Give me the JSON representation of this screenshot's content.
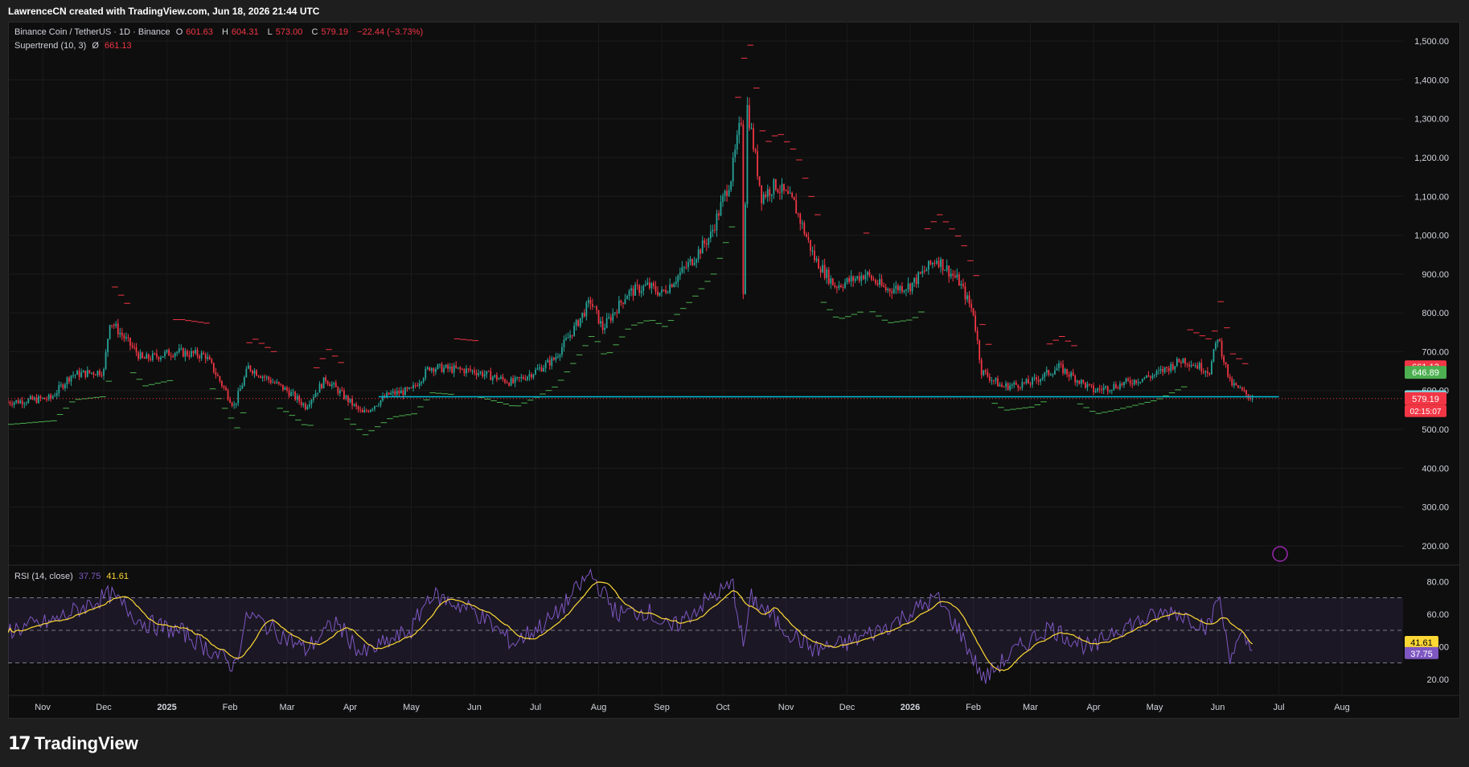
{
  "header": {
    "attribution": "LawrenceCN created with TradingView.com, Jun 18, 2026 21:44 UTC"
  },
  "legend": {
    "symbol": "Binance Coin / TetherUS · 1D · Binance",
    "open_label": "O",
    "open": "601.63",
    "high_label": "H",
    "high": "604.31",
    "low_label": "L",
    "low": "573.00",
    "close_label": "C",
    "close": "579.19",
    "change": "−22.44 (−3.73%)",
    "supertrend_label": "Supertrend (10, 3)",
    "supertrend_icon": "Ø",
    "supertrend_value": "661.13",
    "rsi_label": "RSI (14, close)",
    "rsi_value": "37.75",
    "rsi_ma_value": "41.61"
  },
  "footer": {
    "brand_mark": "17",
    "brand": "TradingView"
  },
  "colors": {
    "up": "#26a69a",
    "down": "#f23645",
    "st_up": "#4caf50",
    "st_down": "#f23645",
    "rsi": "#7e57c2",
    "rsi_ma": "#fdd835",
    "hline": "#00bcd4",
    "bg": "#0e0e0e"
  },
  "chart_data": [
    {
      "type": "candlestick",
      "title": "Binance Coin / TetherUS · 1D · Binance",
      "ylim": [
        150,
        1550
      ],
      "yticks": [
        200,
        300,
        400,
        500,
        600,
        700,
        800,
        900,
        1000,
        1100,
        1200,
        1300,
        1400,
        1500
      ],
      "ytick_labels": [
        "200.00",
        "300.00",
        "400.00",
        "500.00",
        "600.00",
        "700.00",
        "800.00",
        "900.00",
        "1,000.00",
        "1,100.00",
        "1,200.00",
        "1,300.00",
        "1,400.00",
        "1,500.00"
      ],
      "x_labels": [
        "Nov",
        "Dec",
        "2025",
        "Feb",
        "Mar",
        "Apr",
        "May",
        "Jun",
        "Jul",
        "Aug",
        "Sep",
        "Oct",
        "Nov",
        "Dec",
        "2026",
        "Feb",
        "Mar",
        "Apr",
        "May",
        "Jun",
        "Jul",
        "Aug"
      ],
      "x_start": "2024-10-15",
      "x_end": "2026-08-31",
      "price_path": [
        [
          "2024-10-15",
          570
        ],
        [
          "2024-11-05",
          580
        ],
        [
          "2024-11-15",
          640
        ],
        [
          "2024-12-01",
          650
        ],
        [
          "2024-12-04",
          780
        ],
        [
          "2024-12-20",
          680
        ],
        [
          "2025-01-05",
          700
        ],
        [
          "2025-01-20",
          690
        ],
        [
          "2025-02-03",
          560
        ],
        [
          "2025-02-10",
          660
        ],
        [
          "2025-03-01",
          600
        ],
        [
          "2025-03-10",
          560
        ],
        [
          "2025-03-20",
          630
        ],
        [
          "2025-04-07",
          540
        ],
        [
          "2025-04-20",
          590
        ],
        [
          "2025-05-01",
          600
        ],
        [
          "2025-05-10",
          660
        ],
        [
          "2025-06-01",
          650
        ],
        [
          "2025-06-20",
          620
        ],
        [
          "2025-07-01",
          650
        ],
        [
          "2025-07-10",
          680
        ],
        [
          "2025-07-20",
          760
        ],
        [
          "2025-07-28",
          830
        ],
        [
          "2025-08-03",
          760
        ],
        [
          "2025-08-15",
          850
        ],
        [
          "2025-08-25",
          870
        ],
        [
          "2025-09-01",
          850
        ],
        [
          "2025-09-15",
          930
        ],
        [
          "2025-09-25",
          1000
        ],
        [
          "2025-10-05",
          1150
        ],
        [
          "2025-10-10",
          1300
        ],
        [
          "2025-10-11",
          860
        ],
        [
          "2025-10-13",
          1330
        ],
        [
          "2025-10-20",
          1100
        ],
        [
          "2025-10-27",
          1130
        ],
        [
          "2025-11-05",
          1080
        ],
        [
          "2025-11-15",
          940
        ],
        [
          "2025-11-25",
          870
        ],
        [
          "2025-12-01",
          880
        ],
        [
          "2025-12-10",
          900
        ],
        [
          "2025-12-20",
          860
        ],
        [
          "2026-01-01",
          870
        ],
        [
          "2026-01-14",
          940
        ],
        [
          "2026-01-25",
          880
        ],
        [
          "2026-02-01",
          800
        ],
        [
          "2026-02-05",
          650
        ],
        [
          "2026-02-15",
          610
        ],
        [
          "2026-03-01",
          620
        ],
        [
          "2026-03-15",
          660
        ],
        [
          "2026-04-01",
          600
        ],
        [
          "2026-04-10",
          610
        ],
        [
          "2026-05-01",
          640
        ],
        [
          "2026-05-15",
          680
        ],
        [
          "2026-05-28",
          650
        ],
        [
          "2026-06-01",
          740
        ],
        [
          "2026-06-07",
          620
        ],
        [
          "2026-06-15",
          590
        ],
        [
          "2026-06-18",
          579
        ]
      ],
      "supertrend_value": 661.13,
      "price_levels": [
        661.13,
        646.89,
        583.81,
        579.19
      ],
      "price_level_labels": [
        "661.13",
        "646.89",
        "583.81",
        "579.19"
      ],
      "countdown": "02:15:07",
      "horizontal_line": 583.81
    },
    {
      "type": "line",
      "title": "RSI (14, close)",
      "ylim": [
        10,
        90
      ],
      "yticks": [
        20,
        40,
        60,
        80
      ],
      "ytick_labels": [
        "20.00",
        "40.00",
        "60.00",
        "80.00"
      ],
      "bands": [
        30,
        50,
        70
      ],
      "rsi_path": [
        [
          "2024-10-15",
          50
        ],
        [
          "2024-11-05",
          55
        ],
        [
          "2024-12-04",
          72
        ],
        [
          "2024-12-20",
          55
        ],
        [
          "2025-01-10",
          48
        ],
        [
          "2025-02-03",
          28
        ],
        [
          "2025-02-10",
          60
        ],
        [
          "2025-03-10",
          38
        ],
        [
          "2025-03-25",
          55
        ],
        [
          "2025-04-07",
          35
        ],
        [
          "2025-05-01",
          50
        ],
        [
          "2025-05-10",
          72
        ],
        [
          "2025-06-01",
          62
        ],
        [
          "2025-06-20",
          42
        ],
        [
          "2025-07-10",
          58
        ],
        [
          "2025-07-28",
          85
        ],
        [
          "2025-08-10",
          60
        ],
        [
          "2025-08-25",
          62
        ],
        [
          "2025-09-05",
          50
        ],
        [
          "2025-09-25",
          70
        ],
        [
          "2025-10-06",
          78
        ],
        [
          "2025-10-11",
          40
        ],
        [
          "2025-10-15",
          70
        ],
        [
          "2025-11-01",
          50
        ],
        [
          "2025-11-15",
          38
        ],
        [
          "2025-12-01",
          42
        ],
        [
          "2025-12-20",
          52
        ],
        [
          "2026-01-14",
          70
        ],
        [
          "2026-01-25",
          50
        ],
        [
          "2026-02-06",
          20
        ],
        [
          "2026-02-20",
          36
        ],
        [
          "2026-03-10",
          52
        ],
        [
          "2026-04-01",
          38
        ],
        [
          "2026-04-10",
          50
        ],
        [
          "2026-05-10",
          62
        ],
        [
          "2026-05-28",
          52
        ],
        [
          "2026-06-01",
          72
        ],
        [
          "2026-06-07",
          35
        ],
        [
          "2026-06-13",
          45
        ],
        [
          "2026-06-18",
          37.75
        ]
      ],
      "rsi_ma_value": 41.61,
      "value_labels": [
        "41.61",
        "37.75"
      ]
    }
  ]
}
